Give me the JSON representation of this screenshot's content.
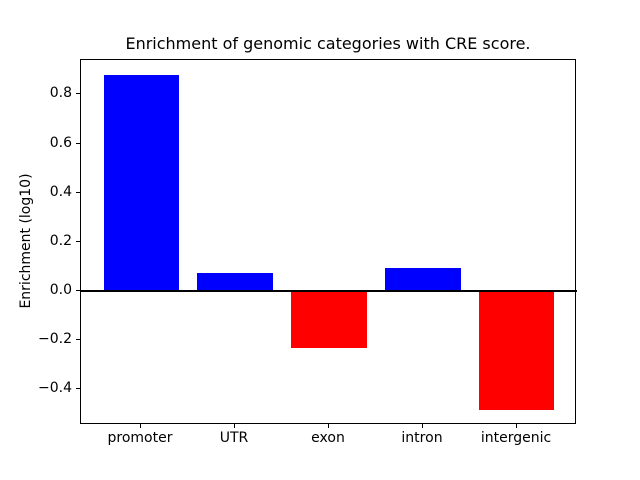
{
  "figure": {
    "background": "#ffffff"
  },
  "chart_data": {
    "type": "bar",
    "title": "Enrichment of genomic categories with CRE score.",
    "xlabel": "",
    "ylabel": "Enrichment (log10)",
    "categories": [
      "promoter",
      "UTR",
      "exon",
      "intron",
      "intergenic"
    ],
    "values": [
      0.88,
      0.075,
      -0.23,
      0.095,
      -0.485
    ],
    "positive_color": "#0000ff",
    "negative_color": "#ff0000",
    "axis_color": "#000000",
    "zero_line": true,
    "zero_line_color": "#000000",
    "grid": false,
    "legend": false,
    "ylim": [
      -0.545,
      0.94
    ],
    "yticks": [
      -0.4,
      -0.2,
      0.0,
      0.2,
      0.4,
      0.6,
      0.8
    ],
    "ytick_labels": [
      "−0.4",
      "−0.2",
      "0.0",
      "0.2",
      "0.4",
      "0.6",
      "0.8"
    ]
  }
}
